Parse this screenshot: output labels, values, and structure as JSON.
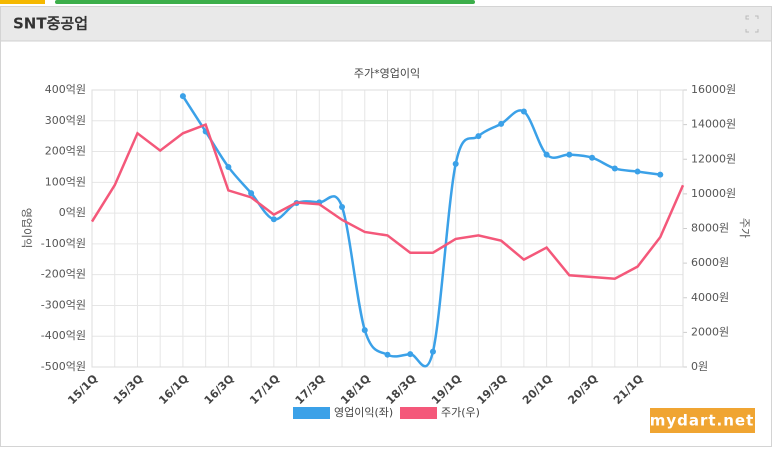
{
  "header": {
    "title": "SNT중공업"
  },
  "chart_data": {
    "type": "line",
    "title": "주가*영업이익",
    "y_label": "영업이익",
    "y2_label": "주가",
    "categories": [
      "15/1Q",
      null,
      "15/3Q",
      null,
      "16/1Q",
      null,
      "16/3Q",
      null,
      "17/1Q",
      null,
      "17/3Q",
      null,
      "18/1Q",
      null,
      "18/3Q",
      null,
      "19/1Q",
      null,
      "19/3Q",
      null,
      "20/1Q",
      null,
      "20/3Q",
      null,
      "21/1Q",
      null,
      null
    ],
    "series": [
      {
        "name": "영업이익(좌)",
        "color": "#3ba1e8",
        "smooth": true,
        "marker": true,
        "values": [
          null,
          null,
          null,
          null,
          380,
          265,
          150,
          65,
          -20,
          33,
          35,
          20,
          -380,
          -460,
          -458,
          -450,
          160,
          250,
          290,
          330,
          190,
          190,
          180,
          145,
          135,
          125,
          null
        ]
      },
      {
        "name": "주가(우)",
        "color": "#f4587a",
        "axis": "y2",
        "smooth": false,
        "marker": false,
        "values": [
          8400,
          10500,
          13500,
          12500,
          13500,
          14000,
          10200,
          9800,
          8800,
          9500,
          9400,
          8500,
          7800,
          7600,
          6600,
          6600,
          7400,
          7600,
          7300,
          6200,
          6900,
          5300,
          5200,
          5100,
          5800,
          7500,
          10500
        ]
      }
    ],
    "ylim": [
      -500,
      400
    ],
    "yticks": [
      {
        "value": -500,
        "label": "-500억원"
      },
      {
        "value": -400,
        "label": "-400억원"
      },
      {
        "value": -300,
        "label": "-300억원"
      },
      {
        "value": -200,
        "label": "-200억원"
      },
      {
        "value": -100,
        "label": "-100억원"
      },
      {
        "value": 0,
        "label": "0억원"
      },
      {
        "value": 100,
        "label": "100억원"
      },
      {
        "value": 200,
        "label": "200억원"
      },
      {
        "value": 300,
        "label": "300억원"
      },
      {
        "value": 400,
        "label": "400억원"
      }
    ],
    "y2lim": [
      0,
      16000
    ],
    "y2ticks": [
      {
        "value": 0,
        "label": "0원"
      },
      {
        "value": 2000,
        "label": "2000원"
      },
      {
        "value": 4000,
        "label": "4000원"
      },
      {
        "value": 6000,
        "label": "6000원"
      },
      {
        "value": 8000,
        "label": "8000원"
      },
      {
        "value": 10000,
        "label": "10000원"
      },
      {
        "value": 12000,
        "label": "12000원"
      },
      {
        "value": 14000,
        "label": "14000원"
      },
      {
        "value": 16000,
        "label": "16000원"
      }
    ],
    "grid": true,
    "legend": "bottom"
  },
  "watermark": "mydart.net"
}
